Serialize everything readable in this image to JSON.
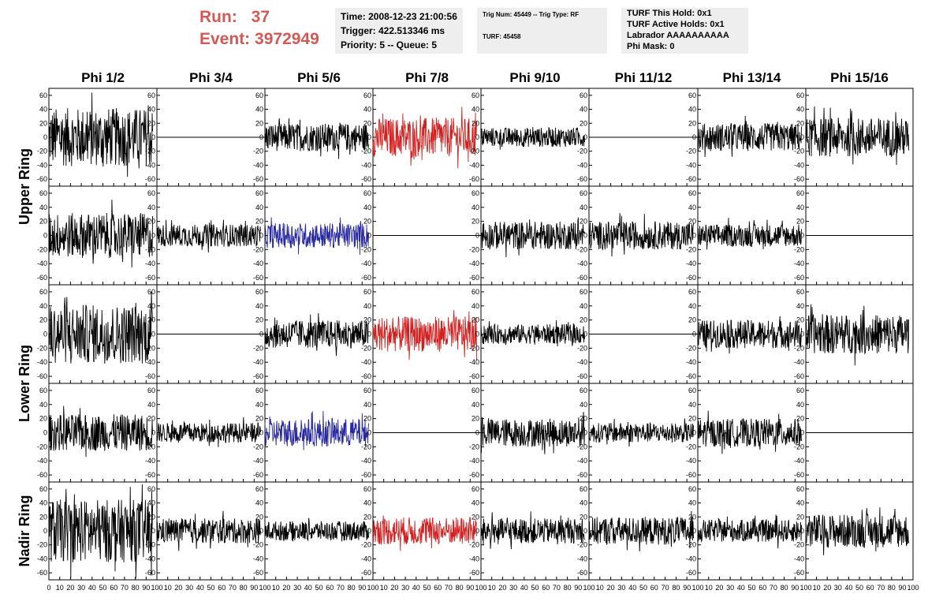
{
  "header": {
    "run_label": "Run:",
    "run_value": "37",
    "event_label": "Event:",
    "event_value": "3972949",
    "time": "Time: 2008-12-23 21:00:56",
    "trigger": "Trigger: 422.513346 ms",
    "priority": "Priority: 5 -- Queue: 5",
    "trig_num": "Trig Num: 45449 -- Trig Type: RF",
    "turf_num": "TURF: 45458",
    "turf_this_hold": "TURF This Hold: 0x1",
    "turf_active_holds": "TURF Active Holds: 0x1",
    "labrador": "Labrador AAAAAAAAAA",
    "phi_mask": "Phi Mask: 0"
  },
  "chart_data": {
    "type": "line",
    "columns": [
      "Phi 1/2",
      "Phi 3/4",
      "Phi 5/6",
      "Phi 7/8",
      "Phi 9/10",
      "Phi 11/12",
      "Phi 13/14",
      "Phi 15/16"
    ],
    "row_groups": [
      "Upper Ring",
      "Lower Ring",
      "Nadir Ring"
    ],
    "xlim": [
      0,
      100
    ],
    "x_ticks": [
      0,
      10,
      20,
      30,
      40,
      50,
      60,
      70,
      80,
      90,
      100
    ],
    "x_tick_labels": [
      "0",
      "10",
      "20",
      "30",
      "40",
      "50",
      "60",
      "70",
      "80",
      "90",
      "100"
    ],
    "ylim": [
      -70,
      70
    ],
    "y_ticks": [
      -60,
      -40,
      -20,
      0,
      20,
      40,
      60
    ],
    "y_tick_labels": [
      "-60",
      "-40",
      "-20",
      "0",
      "20",
      "40",
      "60"
    ],
    "trace_colors": {
      "black": "#000000",
      "red": "#d22020",
      "blue": "#2a2aa0"
    },
    "panels": [
      [
        {
          "color": "black",
          "amplitude": 42,
          "flat": false,
          "x_end": 96
        },
        {
          "color": "black",
          "amplitude": 0,
          "flat": true,
          "x_end": 100
        },
        {
          "color": "black",
          "amplitude": 20,
          "flat": false,
          "x_end": 96
        },
        {
          "color": "red",
          "amplitude": 28,
          "flat": false,
          "x_end": 96
        },
        {
          "color": "black",
          "amplitude": 14,
          "flat": false,
          "x_end": 96
        },
        {
          "color": "black",
          "amplitude": 0,
          "flat": true,
          "x_end": 100
        },
        {
          "color": "black",
          "amplitude": 20,
          "flat": false,
          "x_end": 96
        },
        {
          "color": "black",
          "amplitude": 28,
          "flat": false,
          "x_end": 96
        }
      ],
      [
        {
          "color": "black",
          "amplitude": 32,
          "flat": false,
          "x_end": 96
        },
        {
          "color": "black",
          "amplitude": 16,
          "flat": false,
          "x_end": 96
        },
        {
          "color": "blue",
          "amplitude": 18,
          "flat": false,
          "x_end": 96
        },
        {
          "color": "black",
          "amplitude": 0,
          "flat": true,
          "x_end": 100
        },
        {
          "color": "black",
          "amplitude": 20,
          "flat": false,
          "x_end": 96
        },
        {
          "color": "black",
          "amplitude": 20,
          "flat": false,
          "x_end": 96
        },
        {
          "color": "black",
          "amplitude": 16,
          "flat": false,
          "x_end": 96
        },
        {
          "color": "black",
          "amplitude": 0,
          "flat": true,
          "x_end": 100
        }
      ],
      [
        {
          "color": "black",
          "amplitude": 42,
          "flat": false,
          "x_end": 96
        },
        {
          "color": "black",
          "amplitude": 0,
          "flat": true,
          "x_end": 100
        },
        {
          "color": "black",
          "amplitude": 20,
          "flat": false,
          "x_end": 96
        },
        {
          "color": "red",
          "amplitude": 25,
          "flat": false,
          "x_end": 96
        },
        {
          "color": "black",
          "amplitude": 14,
          "flat": false,
          "x_end": 96
        },
        {
          "color": "black",
          "amplitude": 0,
          "flat": true,
          "x_end": 100
        },
        {
          "color": "black",
          "amplitude": 20,
          "flat": false,
          "x_end": 96
        },
        {
          "color": "black",
          "amplitude": 28,
          "flat": false,
          "x_end": 96
        }
      ],
      [
        {
          "color": "black",
          "amplitude": 26,
          "flat": false,
          "x_end": 96
        },
        {
          "color": "black",
          "amplitude": 14,
          "flat": false,
          "x_end": 96
        },
        {
          "color": "blue",
          "amplitude": 20,
          "flat": false,
          "x_end": 96
        },
        {
          "color": "black",
          "amplitude": 0,
          "flat": true,
          "x_end": 100
        },
        {
          "color": "black",
          "amplitude": 20,
          "flat": false,
          "x_end": 96
        },
        {
          "color": "black",
          "amplitude": 14,
          "flat": false,
          "x_end": 96
        },
        {
          "color": "black",
          "amplitude": 20,
          "flat": false,
          "x_end": 96
        },
        {
          "color": "black",
          "amplitude": 0,
          "flat": true,
          "x_end": 100
        }
      ],
      [
        {
          "color": "black",
          "amplitude": 45,
          "flat": false,
          "x_end": 96
        },
        {
          "color": "black",
          "amplitude": 18,
          "flat": false,
          "x_end": 96
        },
        {
          "color": "black",
          "amplitude": 14,
          "flat": false,
          "x_end": 96
        },
        {
          "color": "red",
          "amplitude": 20,
          "flat": false,
          "x_end": 96
        },
        {
          "color": "black",
          "amplitude": 18,
          "flat": false,
          "x_end": 96
        },
        {
          "color": "black",
          "amplitude": 20,
          "flat": false,
          "x_end": 96
        },
        {
          "color": "black",
          "amplitude": 16,
          "flat": false,
          "x_end": 96
        },
        {
          "color": "black",
          "amplitude": 24,
          "flat": false,
          "x_end": 96
        }
      ]
    ]
  }
}
